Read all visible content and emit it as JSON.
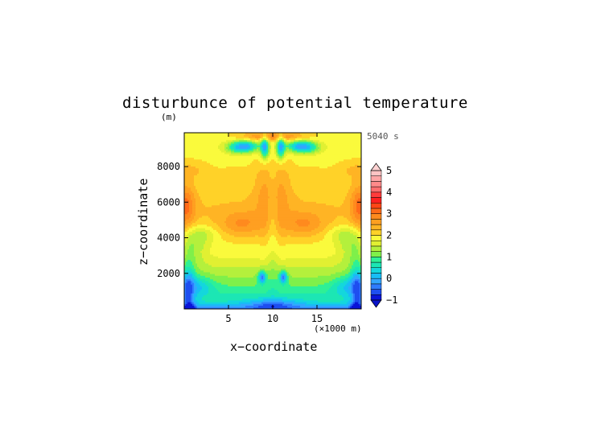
{
  "chart_data": {
    "type": "heatmap",
    "title": "disturbunce of potential temperature",
    "time_label": "5040 s",
    "xlabel": "x−coordinate",
    "xunit": "(×1000 m)",
    "ylabel": "z−coordinate",
    "yunit": "(m)",
    "xlim": [
      0,
      20
    ],
    "ylim": [
      0,
      9900
    ],
    "xticks": [
      5,
      10,
      15
    ],
    "yticks": [
      2000,
      4000,
      6000,
      8000
    ],
    "colorbar": {
      "min": -1,
      "max": 5,
      "step": 0.25,
      "tick_values": [
        -1,
        0,
        1,
        2,
        3,
        4,
        5
      ],
      "tick_labels": [
        "−1",
        "0",
        "1",
        "2",
        "3",
        "4",
        "5"
      ]
    }
  }
}
